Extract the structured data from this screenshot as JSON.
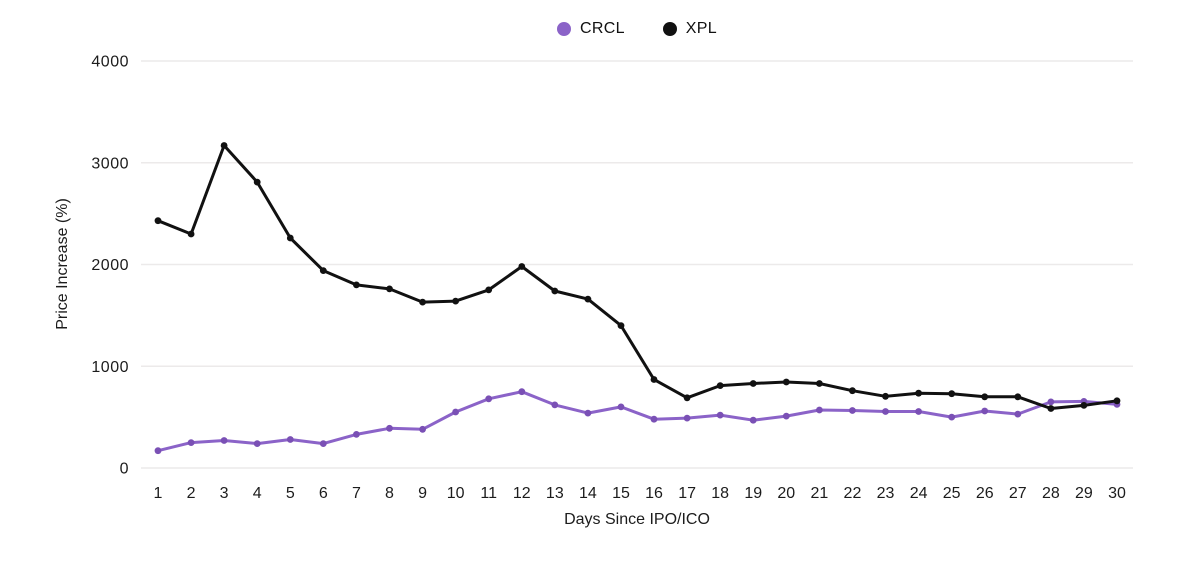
{
  "chart_data": {
    "type": "line",
    "x": [
      1,
      2,
      3,
      4,
      5,
      6,
      7,
      8,
      9,
      10,
      11,
      12,
      13,
      14,
      15,
      16,
      17,
      18,
      19,
      20,
      21,
      22,
      23,
      24,
      25,
      26,
      27,
      28,
      29,
      30
    ],
    "series": [
      {
        "name": "CRCL",
        "color": "#8b63c8",
        "marker_color": "#7a50b5",
        "values": [
          170,
          250,
          270,
          240,
          280,
          240,
          330,
          390,
          380,
          550,
          680,
          750,
          620,
          540,
          600,
          480,
          490,
          520,
          470,
          510,
          570,
          565,
          555,
          555,
          500,
          560,
          530,
          650,
          655,
          625
        ]
      },
      {
        "name": "XPL",
        "color": "#111111",
        "marker_color": "#111111",
        "values": [
          2430,
          2300,
          3170,
          2810,
          2260,
          1940,
          1800,
          1760,
          1630,
          1640,
          1750,
          1980,
          1740,
          1660,
          1400,
          870,
          690,
          810,
          830,
          845,
          830,
          760,
          705,
          735,
          730,
          700,
          700,
          585,
          615,
          660
        ]
      }
    ],
    "title": "",
    "xlabel": "Days Since IPO/ICO",
    "ylabel": "Price Increase (%)",
    "ylim": [
      0,
      4000
    ],
    "yticks": [
      0,
      1000,
      2000,
      3000,
      4000
    ],
    "grid": "horizontal-only",
    "grid_color": "#eceaea",
    "text_color": "#1c1c1c",
    "background": "#ffffff",
    "legend_position": "top-center"
  }
}
